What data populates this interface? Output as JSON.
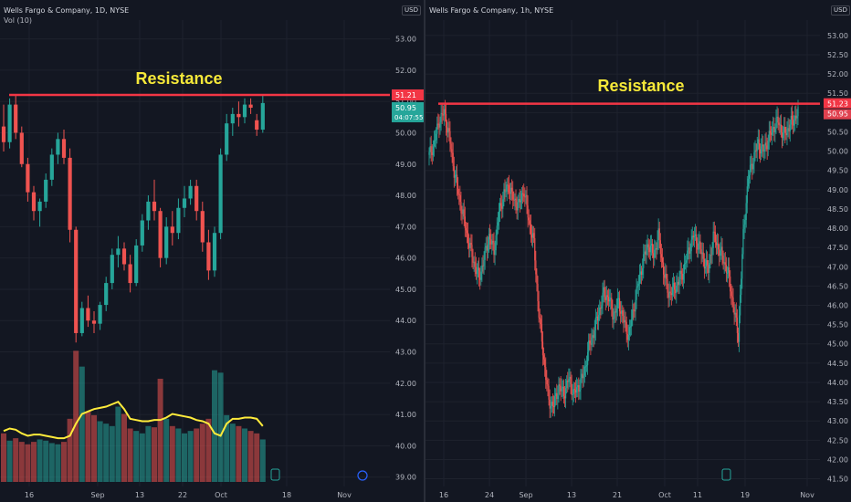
{
  "colors": {
    "background": "#131722",
    "grid": "#1e222d",
    "up": "#26a69a",
    "down": "#ef5350",
    "resistance": "#f23645",
    "annotation": "#f5e839",
    "vol_ma": "#ffeb3b",
    "axis_text": "#b2b5be"
  },
  "chart_data": [
    {
      "type": "candlestick",
      "symbol_header": "Wells Fargo & Company, 1D, NYSE",
      "indicator_label": "Vol (10)",
      "currency": "USD",
      "annotation": "Resistance",
      "resistance_level": 51.21,
      "ylim": [
        38.7,
        53.6
      ],
      "y_ticks": [
        "53.00",
        "52.00",
        "51.00",
        "50.00",
        "49.00",
        "48.00",
        "47.00",
        "46.00",
        "45.00",
        "44.00",
        "43.00",
        "42.00",
        "41.00",
        "40.00",
        "39.00"
      ],
      "x_ticks": [
        "16",
        "Sep",
        "13",
        "22",
        "Oct",
        "18",
        "Nov"
      ],
      "price_labels": {
        "resistance": "51.21",
        "last": "50.95",
        "countdown": "04:07:55"
      },
      "ohlc": [
        [
          50.2,
          50.9,
          49.4,
          49.7
        ],
        [
          49.7,
          51.1,
          49.5,
          50.9
        ],
        [
          50.9,
          51.2,
          49.8,
          50.0
        ],
        [
          50.0,
          50.2,
          48.9,
          49.0
        ],
        [
          49.0,
          49.2,
          47.8,
          48.1
        ],
        [
          48.1,
          48.3,
          47.2,
          47.5
        ],
        [
          47.5,
          47.9,
          47.0,
          47.8
        ],
        [
          47.8,
          48.7,
          47.6,
          48.5
        ],
        [
          48.5,
          49.5,
          48.3,
          49.3
        ],
        [
          49.3,
          50.0,
          49.0,
          49.8
        ],
        [
          49.8,
          50.1,
          49.0,
          49.2
        ],
        [
          49.2,
          49.5,
          46.5,
          46.9
        ],
        [
          46.9,
          47.0,
          43.3,
          43.6
        ],
        [
          43.6,
          44.6,
          43.5,
          44.4
        ],
        [
          44.4,
          44.8,
          43.8,
          44.0
        ],
        [
          44.0,
          44.3,
          43.6,
          43.9
        ],
        [
          43.9,
          44.6,
          43.7,
          44.5
        ],
        [
          44.5,
          45.4,
          44.3,
          45.2
        ],
        [
          45.2,
          46.3,
          45.0,
          46.1
        ],
        [
          46.1,
          46.7,
          45.7,
          46.3
        ],
        [
          46.3,
          46.5,
          45.6,
          45.8
        ],
        [
          45.8,
          46.1,
          44.9,
          45.2
        ],
        [
          45.2,
          46.6,
          45.1,
          46.4
        ],
        [
          46.4,
          47.4,
          46.2,
          47.2
        ],
        [
          47.2,
          48.0,
          46.9,
          47.8
        ],
        [
          47.8,
          48.5,
          47.2,
          47.5
        ],
        [
          47.5,
          47.6,
          45.7,
          46.0
        ],
        [
          46.0,
          47.3,
          45.8,
          47.0
        ],
        [
          47.0,
          47.5,
          46.4,
          46.8
        ],
        [
          46.8,
          47.9,
          46.6,
          47.6
        ],
        [
          47.6,
          48.3,
          47.3,
          47.9
        ],
        [
          47.9,
          48.5,
          47.7,
          48.3
        ],
        [
          48.3,
          48.5,
          47.2,
          47.5
        ],
        [
          47.5,
          47.8,
          46.2,
          46.5
        ],
        [
          46.5,
          46.9,
          45.3,
          45.6
        ],
        [
          45.6,
          47.0,
          45.4,
          46.8
        ],
        [
          46.8,
          49.5,
          46.6,
          49.3
        ],
        [
          49.3,
          50.6,
          49.1,
          50.3
        ],
        [
          50.3,
          50.8,
          49.9,
          50.6
        ],
        [
          50.6,
          51.0,
          50.2,
          50.5
        ],
        [
          50.5,
          51.1,
          50.3,
          50.9
        ],
        [
          50.9,
          51.1,
          50.6,
          50.8
        ],
        [
          50.4,
          50.6,
          49.9,
          50.1
        ],
        [
          50.1,
          51.2,
          50.0,
          50.95
        ]
      ],
      "volume_ma": [
        0.42,
        0.44,
        0.43,
        0.4,
        0.38,
        0.39,
        0.39,
        0.38,
        0.37,
        0.36,
        0.36,
        0.38,
        0.48,
        0.56,
        0.58,
        0.6,
        0.61,
        0.62,
        0.64,
        0.66,
        0.6,
        0.52,
        0.51,
        0.5,
        0.5,
        0.51,
        0.51,
        0.53,
        0.56,
        0.55,
        0.54,
        0.53,
        0.51,
        0.5,
        0.48,
        0.4,
        0.38,
        0.48,
        0.52,
        0.52,
        0.53,
        0.53,
        0.52,
        0.46
      ],
      "volume": [
        0.4,
        0.34,
        0.36,
        0.33,
        0.31,
        0.33,
        0.35,
        0.34,
        0.32,
        0.31,
        0.33,
        0.52,
        1.08,
        0.95,
        0.58,
        0.55,
        0.5,
        0.48,
        0.46,
        0.62,
        0.56,
        0.44,
        0.42,
        0.4,
        0.46,
        0.45,
        0.85,
        0.52,
        0.46,
        0.44,
        0.4,
        0.42,
        0.44,
        0.48,
        0.52,
        0.92,
        0.9,
        0.55,
        0.48,
        0.46,
        0.44,
        0.42,
        0.4,
        0.35
      ]
    },
    {
      "type": "candlestick",
      "symbol_header": "Wells Fargo & Company, 1h, NYSE",
      "currency": "USD",
      "annotation": "Resistance",
      "resistance_level": 51.23,
      "ylim": [
        41.3,
        53.4
      ],
      "y_ticks": [
        "53.00",
        "52.50",
        "52.00",
        "51.50",
        "51.00",
        "50.50",
        "50.00",
        "49.50",
        "49.00",
        "48.50",
        "48.00",
        "47.50",
        "47.00",
        "46.50",
        "46.00",
        "45.50",
        "45.00",
        "44.50",
        "44.00",
        "43.50",
        "43.00",
        "42.50",
        "42.00",
        "41.50"
      ],
      "x_ticks": [
        "16",
        "24",
        "Sep",
        "13",
        "21",
        "Oct",
        "11",
        "19",
        "Nov"
      ],
      "price_labels": {
        "resistance": "51.23",
        "last": "50.95"
      },
      "path_closes": [
        49.9,
        50.2,
        50.8,
        51.0,
        50.4,
        49.5,
        48.8,
        48.2,
        47.6,
        47.1,
        46.7,
        47.2,
        47.8,
        47.4,
        48.4,
        48.9,
        49.1,
        48.7,
        48.6,
        49.0,
        48.2,
        47.6,
        45.8,
        44.6,
        43.5,
        43.4,
        43.9,
        43.7,
        44.1,
        43.7,
        43.9,
        44.2,
        44.9,
        45.3,
        45.8,
        46.3,
        46.2,
        45.7,
        46.1,
        45.6,
        45.2,
        45.9,
        46.6,
        47.2,
        47.6,
        47.3,
        47.8,
        46.9,
        46.3,
        46.4,
        46.6,
        46.9,
        47.4,
        47.8,
        47.6,
        47.2,
        46.9,
        47.8,
        47.5,
        47.2,
        46.8,
        46.0,
        45.2,
        47.8,
        49.3,
        49.8,
        50.2,
        50.0,
        50.3,
        50.6,
        50.8,
        50.4,
        50.6,
        50.8,
        51.0
      ]
    }
  ]
}
